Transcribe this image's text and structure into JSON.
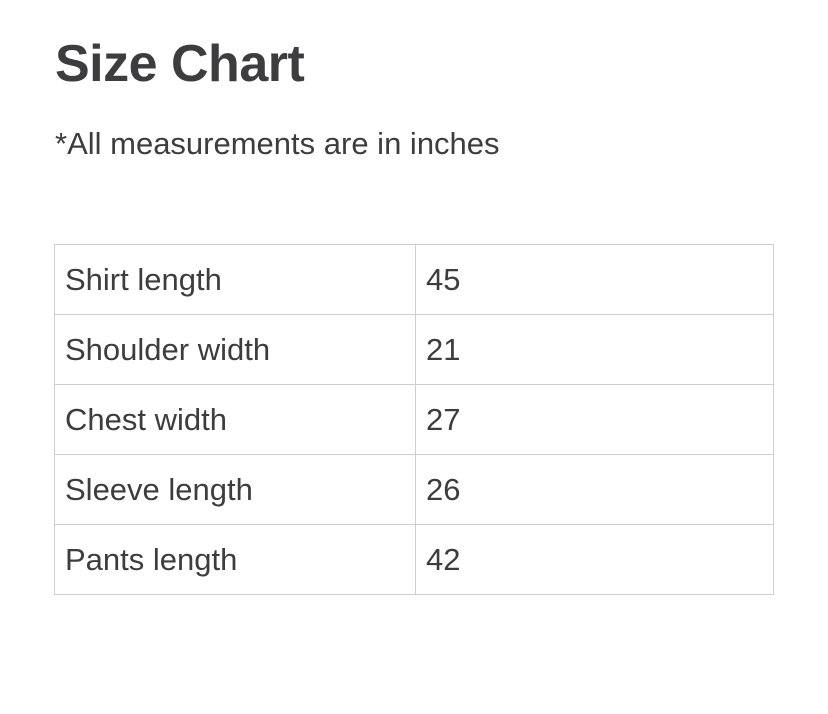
{
  "title": "Size Chart",
  "note": "*All measurements are in inches",
  "rows": [
    {
      "label": "Shirt length",
      "value": "45"
    },
    {
      "label": "Shoulder width",
      "value": "21"
    },
    {
      "label": "Chest width",
      "value": "27"
    },
    {
      "label": "Sleeve length",
      "value": "26"
    },
    {
      "label": "Pants length",
      "value": "42"
    }
  ]
}
